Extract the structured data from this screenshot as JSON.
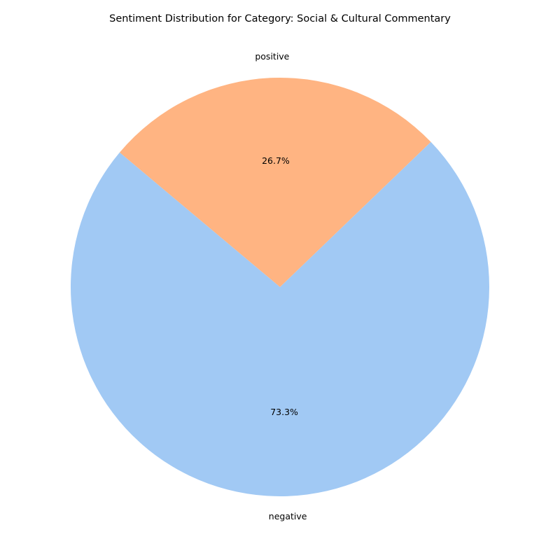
{
  "chart_data": {
    "type": "pie",
    "title": "Sentiment Distribution for Category: Social & Cultural Commentary",
    "categories": [
      "negative",
      "positive"
    ],
    "values": [
      73.3,
      26.7
    ],
    "value_labels": [
      "73.3%",
      "26.7%"
    ],
    "colors": [
      "#a1c9f4",
      "#ffb482"
    ],
    "start_angle_deg": 140,
    "direction": "counterclockwise",
    "legend": "none"
  }
}
